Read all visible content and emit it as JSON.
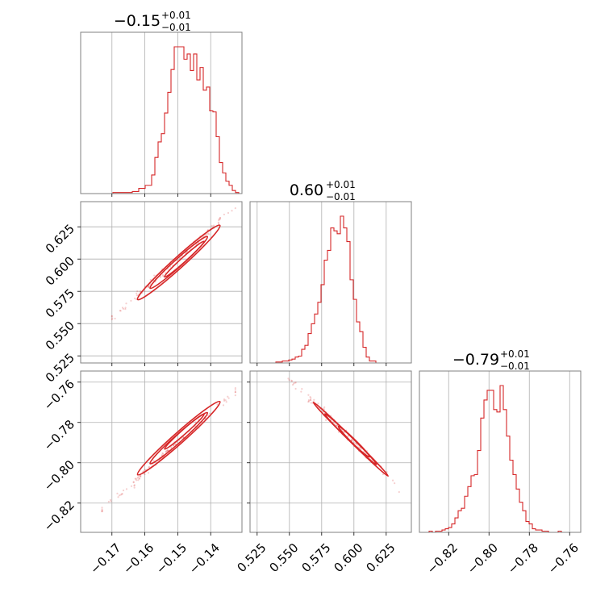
{
  "chart_data": {
    "type": "corner",
    "color": "#d62728",
    "parameters": [
      {
        "title": "−0.15",
        "title_plus": "+0.01",
        "title_minus": "−0.01",
        "range": [
          -0.1795,
          -0.1305
        ],
        "ticks": [
          -0.17,
          -0.16,
          -0.15,
          -0.14
        ],
        "tick_labels": [
          "−0.17",
          "−0.16",
          "−0.15",
          "−0.14"
        ],
        "hist": {
          "edges_start": -0.1795,
          "edges_step": 0.00098,
          "counts": [
            0,
            0,
            0,
            0,
            0,
            0,
            0,
            0,
            0,
            0,
            1,
            1,
            1,
            1,
            1,
            1,
            2,
            2,
            5,
            5,
            8,
            8,
            18,
            35,
            50,
            58,
            78,
            98,
            120,
            142,
            142,
            142,
            130,
            135,
            119,
            135,
            110,
            122,
            100,
            103,
            80,
            79,
            55,
            30,
            20,
            12,
            8,
            3,
            1,
            0
          ]
        }
      },
      {
        "title": "0.60",
        "title_plus": "+0.01",
        "title_minus": "−0.01",
        "range": [
          0.5195,
          0.6445
        ],
        "ticks": [
          0.525,
          0.55,
          0.575,
          0.6,
          0.625
        ],
        "tick_labels": [
          "0.525",
          "0.550",
          "0.575",
          "0.600",
          "0.625"
        ],
        "hist": {
          "edges_start": 0.5195,
          "edges_step": 0.0025,
          "counts": [
            0,
            0,
            0,
            0,
            0,
            0,
            0,
            0,
            1,
            1,
            2,
            2,
            3,
            4,
            6,
            7,
            14,
            18,
            30,
            40,
            50,
            62,
            80,
            105,
            115,
            138,
            135,
            132,
            150,
            138,
            124,
            85,
            65,
            42,
            32,
            16,
            6,
            2,
            2,
            0,
            0,
            0,
            0,
            0,
            0,
            0,
            0,
            0,
            0,
            0
          ]
        }
      },
      {
        "title": "−0.79",
        "title_plus": "+0.01",
        "title_minus": "−0.01",
        "range": [
          -0.8345,
          -0.7545
        ],
        "ticks": [
          -0.82,
          -0.8,
          -0.78,
          -0.76
        ],
        "tick_labels": [
          "−0.82",
          "−0.80",
          "−0.78",
          "−0.76"
        ],
        "hist": {
          "edges_start": -0.8345,
          "edges_step": 0.0016,
          "counts": [
            0,
            0,
            0,
            1,
            0,
            1,
            1,
            2,
            3,
            4,
            7,
            12,
            18,
            20,
            30,
            38,
            47,
            48,
            68,
            95,
            110,
            118,
            118,
            102,
            100,
            122,
            102,
            80,
            60,
            48,
            36,
            25,
            18,
            9,
            7,
            3,
            2,
            2,
            1,
            1,
            0,
            0,
            0,
            1,
            0,
            0,
            0,
            0,
            0,
            0
          ]
        }
      }
    ],
    "pairs": [
      {
        "row": 1,
        "col": 0,
        "slope": -5.4,
        "intercept": -0.21,
        "contours": [
          {
            "center": [
              -0.1497,
              0.5974
            ],
            "u": 0.0087,
            "v": 0.0025
          },
          {
            "center": [
              -0.1497,
              0.5974
            ],
            "u": 0.0125,
            "v": 0.0035
          },
          {
            "center": [
              -0.148,
              0.6
            ],
            "u": 0.006,
            "v": 0.0015
          }
        ],
        "scatter_x_range": [
          -0.17,
          -0.1325
        ],
        "scatter_n": 140
      },
      {
        "row": 2,
        "col": 0,
        "slope": 3.4,
        "intercept": -0.278,
        "contours": [
          {
            "center": [
              -0.1497,
              -0.7878
            ],
            "u": 0.0087,
            "v": 0.0025
          },
          {
            "center": [
              -0.1497,
              -0.7878
            ],
            "u": 0.0125,
            "v": 0.0035
          },
          {
            "center": [
              -0.148,
              -0.7845
            ],
            "u": 0.006,
            "v": 0.0015
          }
        ],
        "scatter_x_range": [
          -0.173,
          -0.1325
        ],
        "scatter_n": 140
      },
      {
        "row": 2,
        "col": 1,
        "slope": -0.63,
        "intercept": -0.412,
        "contours": [
          {
            "center": [
              0.5975,
              -0.7883
            ],
            "u": 0.02,
            "v": 0.0015
          },
          {
            "center": [
              0.5975,
              -0.7883
            ],
            "u": 0.029,
            "v": 0.0022
          },
          {
            "center": [
              0.6,
              -0.7895
            ],
            "u": 0.012,
            "v": 0.001
          }
        ],
        "scatter_x_range": [
          0.54,
          0.635
        ],
        "scatter_n": 140
      }
    ]
  }
}
